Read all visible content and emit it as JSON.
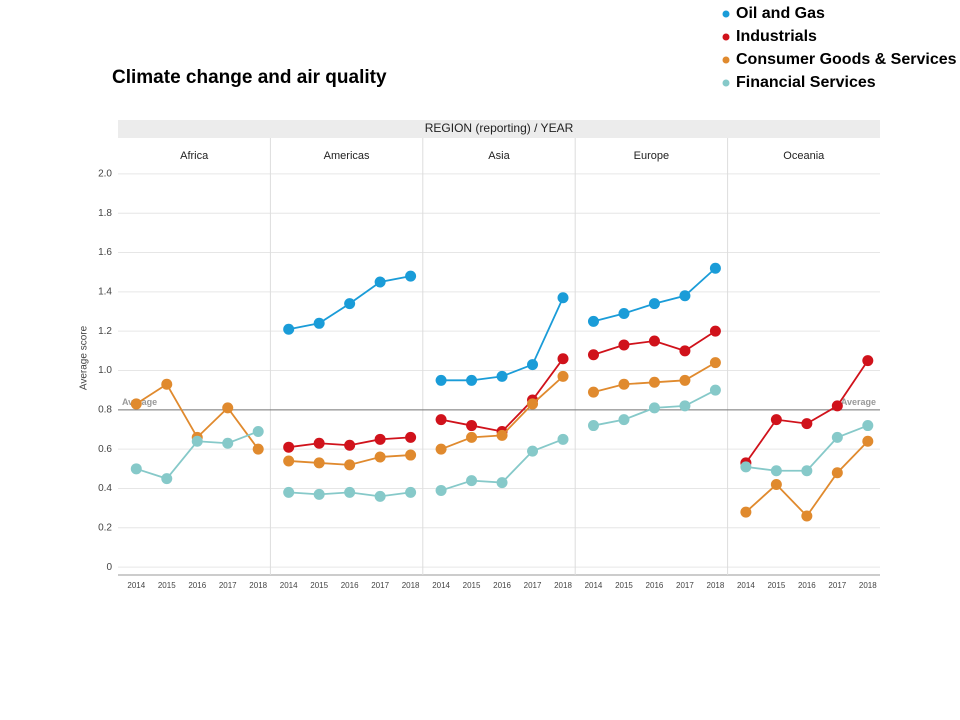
{
  "chart_data": {
    "type": "line",
    "title": "Climate change and air quality",
    "header": "REGION (reporting) / YEAR",
    "y_label": "Average score",
    "panels": [
      "Africa",
      "Americas",
      "Asia",
      "Europe",
      "Oceania"
    ],
    "categories": [
      "2014",
      "2015",
      "2016",
      "2017",
      "2018"
    ],
    "ylim": [
      -0.04,
      2.04
    ],
    "yticks": [
      0,
      0.2,
      0.4,
      0.6,
      0.8,
      {
        "value": 1,
        "label": "1.0"
      },
      1.2,
      1.4,
      1.6,
      1.8,
      {
        "value": 2,
        "label": "2.0"
      }
    ],
    "grid": true,
    "reference": {
      "value": 0.8,
      "label": "Average"
    },
    "series": [
      {
        "name": "Oil and Gas",
        "color": "#1a9cd8",
        "values": [
          [
            null,
            null,
            null,
            null,
            null
          ],
          [
            1.21,
            1.24,
            1.34,
            1.45,
            1.48
          ],
          [
            0.95,
            0.95,
            0.97,
            1.03,
            1.37
          ],
          [
            1.25,
            1.29,
            1.34,
            1.38,
            1.52
          ],
          [
            null,
            null,
            null,
            null,
            null
          ]
        ]
      },
      {
        "name": "Industrials",
        "color": "#d0121b",
        "values": [
          [
            null,
            null,
            null,
            null,
            null
          ],
          [
            0.61,
            0.63,
            0.62,
            0.65,
            0.66
          ],
          [
            0.75,
            0.72,
            0.69,
            0.85,
            1.06
          ],
          [
            1.08,
            1.13,
            1.15,
            1.1,
            1.2
          ],
          [
            0.53,
            0.75,
            0.73,
            0.82,
            1.05
          ]
        ]
      },
      {
        "name": "Consumer Goods & Services",
        "color": "#e08a2e",
        "values": [
          [
            0.83,
            0.93,
            0.66,
            0.81,
            0.6
          ],
          [
            0.54,
            0.53,
            0.52,
            0.56,
            0.57
          ],
          [
            0.6,
            0.66,
            0.67,
            0.83,
            0.97
          ],
          [
            0.89,
            0.93,
            0.94,
            0.95,
            1.04
          ],
          [
            0.28,
            0.42,
            0.26,
            0.48,
            0.64
          ]
        ]
      },
      {
        "name": "Financial Services",
        "color": "#86c9c9",
        "values": [
          [
            0.5,
            0.45,
            0.64,
            0.63,
            0.69
          ],
          [
            0.38,
            0.37,
            0.38,
            0.36,
            0.38
          ],
          [
            0.39,
            0.44,
            0.43,
            0.59,
            0.65
          ],
          [
            0.72,
            0.75,
            0.81,
            0.82,
            0.9
          ],
          [
            0.51,
            0.49,
            0.49,
            0.66,
            0.72
          ]
        ]
      }
    ]
  }
}
